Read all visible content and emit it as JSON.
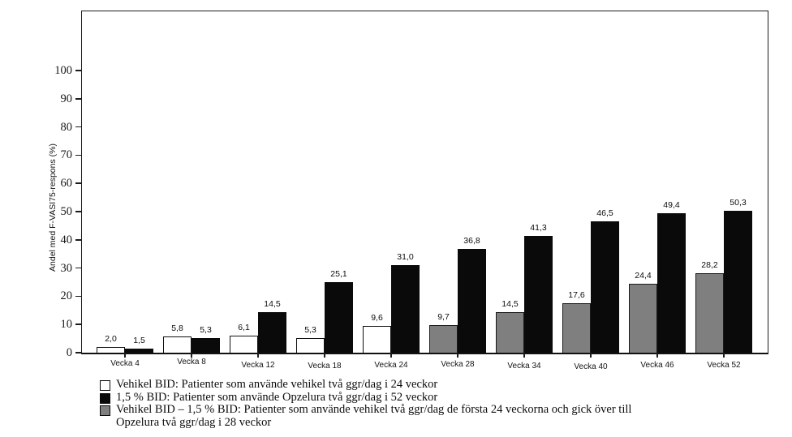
{
  "chart_data": {
    "type": "bar",
    "title": "",
    "xlabel": "",
    "ylabel": "Andel med F-VASI75-respons (%)",
    "ylim": [
      0,
      100
    ],
    "yticks": [
      0,
      10,
      20,
      30,
      40,
      50,
      60,
      70,
      80,
      90,
      100
    ],
    "grid": false,
    "legend_position": "bottom-left",
    "decimal_separator": ",",
    "categories": [
      "Vecka 4",
      "Vecka 8",
      "Vecka 12",
      "Vecka 18",
      "Vecka 24",
      "Vecka 28",
      "Vecka 34",
      "Vecka 40",
      "Vecka 46",
      "Vecka 52"
    ],
    "series": [
      {
        "name": "Vehikel BID",
        "slot": "left",
        "fill": "white",
        "values": [
          2.0,
          5.8,
          6.1,
          5.3,
          9.6,
          null,
          null,
          null,
          null,
          null
        ],
        "value_labels": [
          "2,0",
          "5,8",
          "6,1",
          "5,3",
          "9,6",
          null,
          null,
          null,
          null,
          null
        ]
      },
      {
        "name": "1,5 % BID",
        "slot": "right",
        "fill": "black",
        "values": [
          1.5,
          5.3,
          14.5,
          25.1,
          31.0,
          36.8,
          41.3,
          46.5,
          49.4,
          50.3
        ],
        "value_labels": [
          "1,5",
          "5,3",
          "14,5",
          "25,1",
          "31,0",
          "36,8",
          "41,3",
          "46,5",
          "49,4",
          "50,3"
        ]
      },
      {
        "name": "Vehikel BID – 1,5 % BID",
        "slot": "left",
        "fill": "gray",
        "values": [
          null,
          null,
          null,
          null,
          null,
          9.7,
          14.5,
          17.6,
          24.4,
          28.2
        ],
        "value_labels": [
          null,
          null,
          null,
          null,
          null,
          "9,7",
          "14,5",
          "17,6",
          "24,4",
          "28,2"
        ]
      }
    ],
    "colors": {
      "white": "#ffffff",
      "black": "#0a0a0a",
      "gray": "#7f7f7f"
    }
  },
  "legend": {
    "items": [
      {
        "fill": "white",
        "label": "Vehikel BID: Patienter som använde vehikel två ggr/dag i 24 veckor"
      },
      {
        "fill": "black",
        "label": "1,5 % BID: Patienter som använde Opzelura två ggr/dag i 52 veckor"
      },
      {
        "fill": "gray",
        "label": "Vehikel BID – 1,5 % BID: Patienter som använde vehikel två ggr/dag de första 24 veckorna och gick över till\nOpzelura två ggr/dag i 28 veckor"
      }
    ]
  }
}
